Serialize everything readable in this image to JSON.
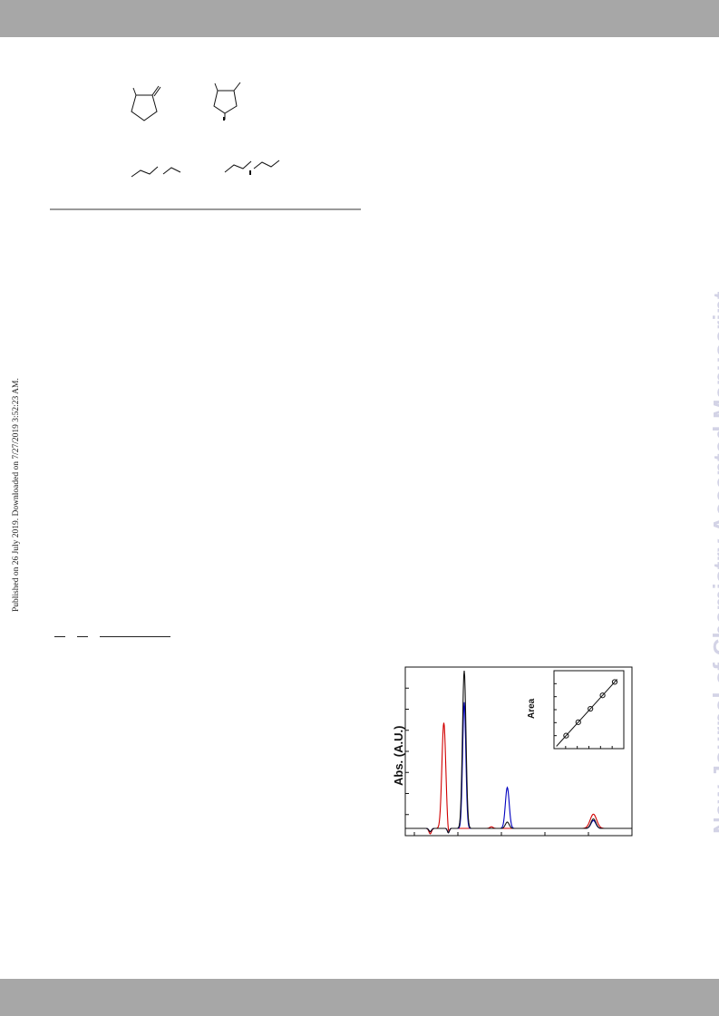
{
  "side_left_text": "Published on 26 July 2019. Downloaded on 7/27/2019 3:52:23 AM.",
  "side_right_text": "New Journal of Chemistry Accepted Manuscript",
  "colors": {
    "band": "#a7a7a7",
    "watermark": "#d3d3e6",
    "series_red": "#d10000",
    "series_blue": "#0000c0",
    "series_black": "#111111",
    "series_magenta": "#b0007a"
  },
  "chart_data": {
    "type": "line",
    "title": "",
    "xlabel": "",
    "ylabel": "Abs. (A.U.)",
    "series": [
      {
        "color": "red",
        "peaks": [
          {
            "x": 0.17,
            "height": 0.67,
            "width": 0.012
          },
          {
            "x": 0.38,
            "height": 0.01,
            "width": 0.01
          },
          {
            "x": 0.83,
            "height": 0.09,
            "width": 0.02
          }
        ]
      },
      {
        "color": "blue",
        "peaks": [
          {
            "x": 0.26,
            "height": 0.8,
            "width": 0.01
          },
          {
            "x": 0.45,
            "height": 0.26,
            "width": 0.012
          },
          {
            "x": 0.83,
            "height": 0.05,
            "width": 0.015
          }
        ]
      },
      {
        "color": "black",
        "peaks": [
          {
            "x": 0.26,
            "height": 1.0,
            "width": 0.011
          },
          {
            "x": 0.45,
            "height": 0.04,
            "width": 0.012
          },
          {
            "x": 0.83,
            "height": 0.06,
            "width": 0.015
          }
        ]
      }
    ],
    "inset": {
      "type": "scatter",
      "ylabel": "Area",
      "points": [
        [
          1,
          1
        ],
        [
          2,
          2
        ],
        [
          3,
          3
        ],
        [
          4,
          4
        ],
        [
          5,
          5
        ]
      ]
    }
  }
}
